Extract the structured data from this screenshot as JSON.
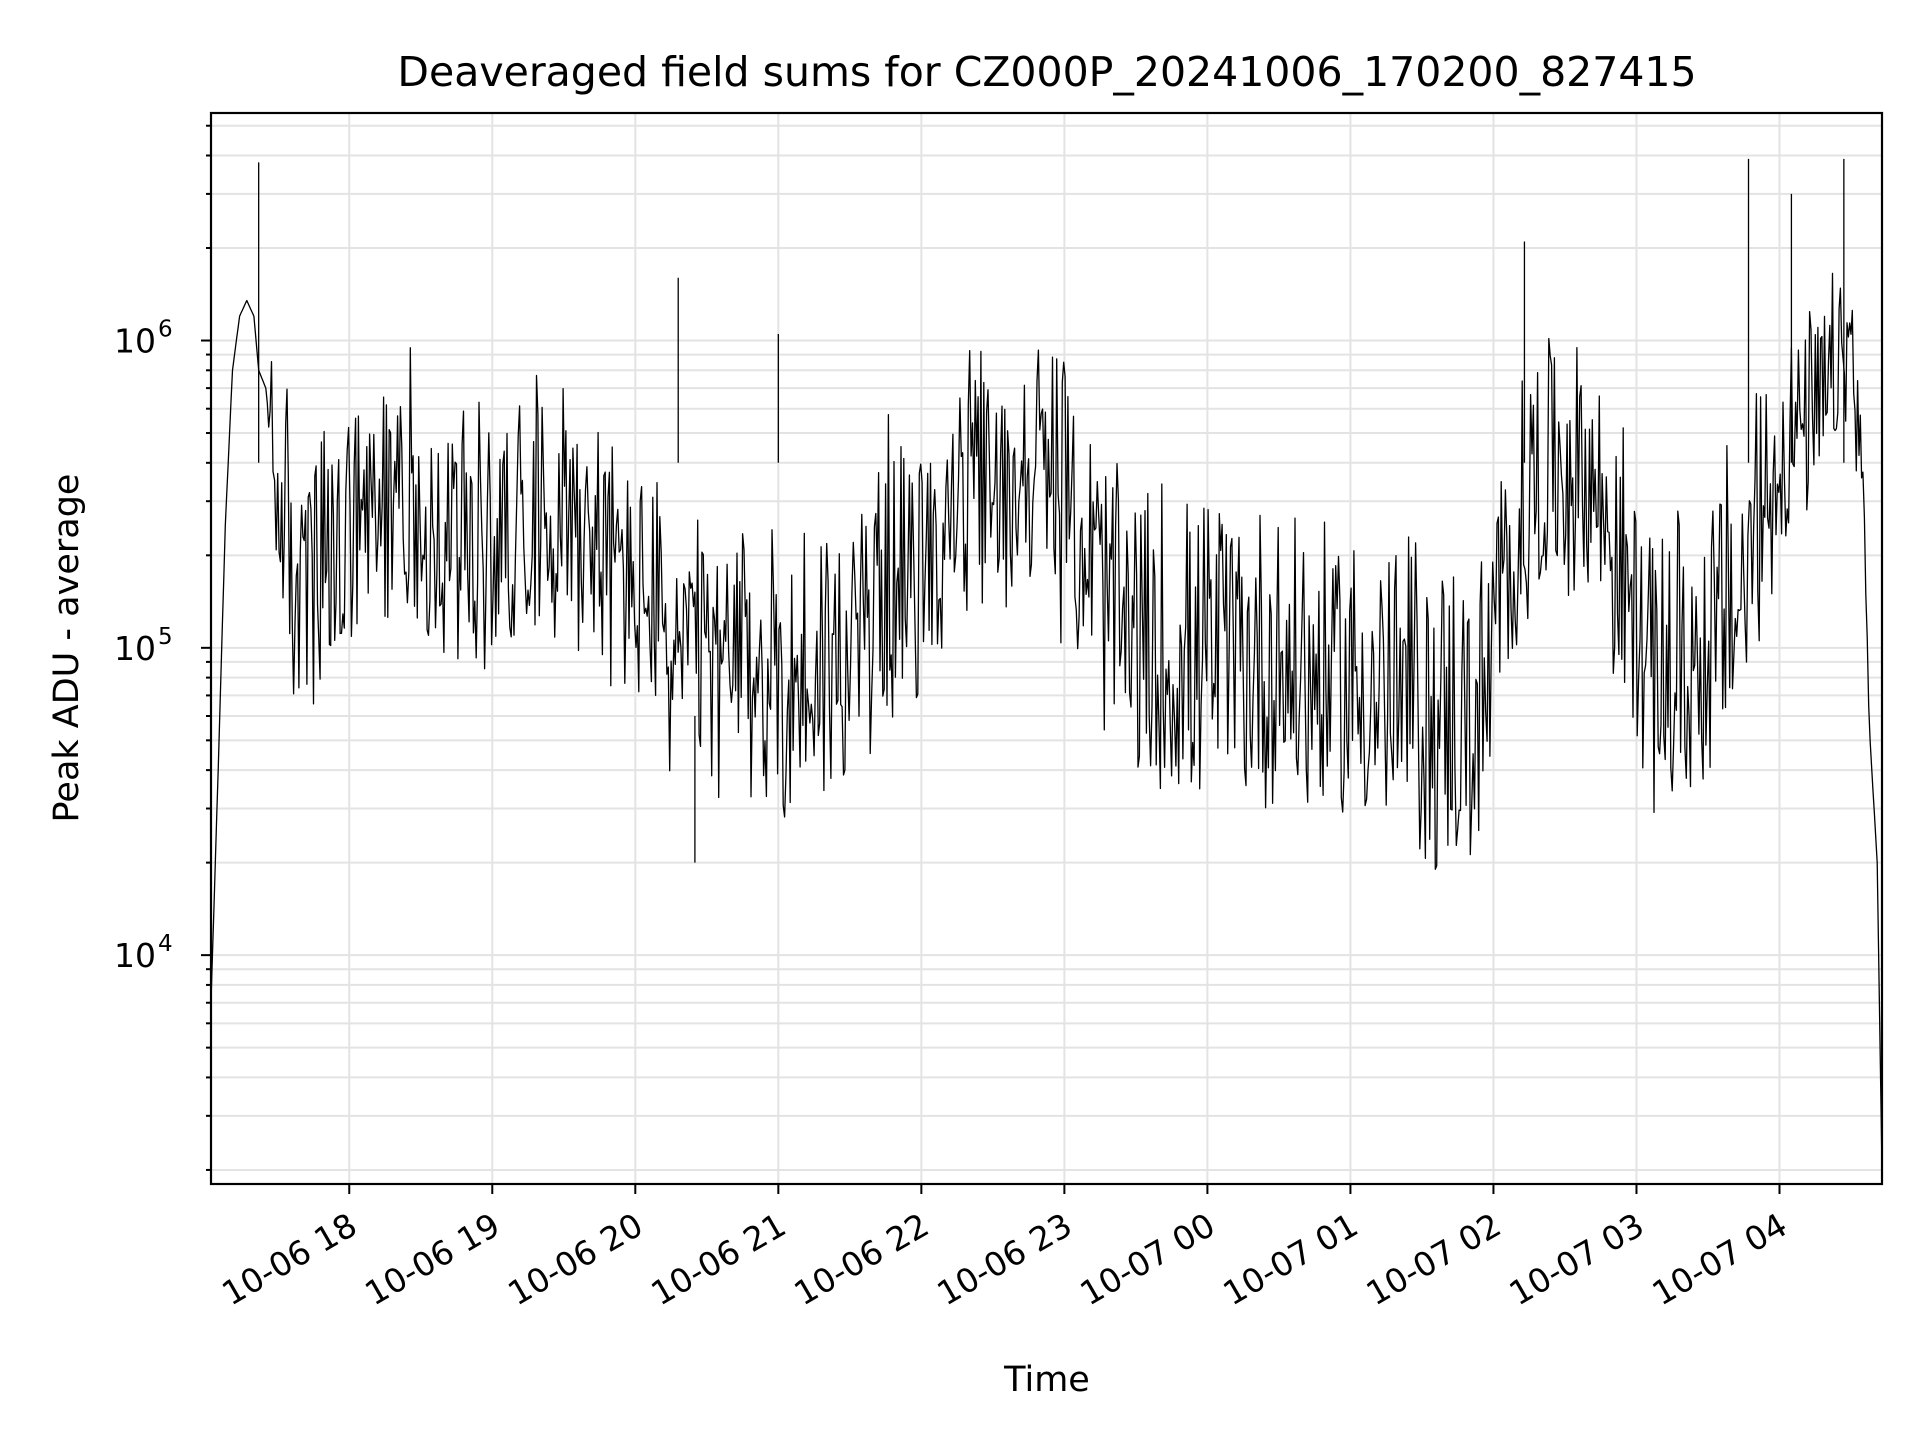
{
  "chart_data": {
    "type": "line",
    "title": "Deaveraged field sums for CZ000P_20241006_170200_827415",
    "xlabel": "Time",
    "ylabel": "Peak ADU - average",
    "yscale": "log",
    "ylim": [
      1800,
      5500000
    ],
    "xlim": [
      "2024-10-06T17:02:00",
      "2024-10-07T04:43:00"
    ],
    "grid": true,
    "legend": "none",
    "line_color": "#000000",
    "x_ticks": [
      {
        "t": "2024-10-06T18:00",
        "label": "10-06 18"
      },
      {
        "t": "2024-10-06T19:00",
        "label": "10-06 19"
      },
      {
        "t": "2024-10-06T20:00",
        "label": "10-06 20"
      },
      {
        "t": "2024-10-06T21:00",
        "label": "10-06 21"
      },
      {
        "t": "2024-10-06T22:00",
        "label": "10-06 22"
      },
      {
        "t": "2024-10-06T23:00",
        "label": "10-06 23"
      },
      {
        "t": "2024-10-07T00:00",
        "label": "10-07 00"
      },
      {
        "t": "2024-10-07T01:00",
        "label": "10-07 01"
      },
      {
        "t": "2024-10-07T02:00",
        "label": "10-07 02"
      },
      {
        "t": "2024-10-07T03:00",
        "label": "10-07 03"
      },
      {
        "t": "2024-10-07T04:00",
        "label": "10-07 04"
      }
    ],
    "y_ticks": [
      {
        "value": 10000,
        "base": "10",
        "exp": "4"
      },
      {
        "value": 100000,
        "base": "10",
        "exp": "5"
      },
      {
        "value": 1000000,
        "base": "10",
        "exp": "6"
      }
    ],
    "series": [
      {
        "x": [
          "2024-10-06T17:02",
          "2024-10-06T17:05",
          "2024-10-06T17:08",
          "2024-10-06T17:11",
          "2024-10-06T17:14",
          "2024-10-06T17:17",
          "2024-10-06T17:20",
          "2024-10-06T17:22",
          "2024-10-06T17:25",
          "2024-10-06T17:28",
          "2024-10-06T17:30",
          "2024-10-06T17:35",
          "2024-10-06T17:40",
          "2024-10-06T17:45",
          "2024-10-06T17:50",
          "2024-10-06T17:55",
          "2024-10-06T18:05",
          "2024-10-06T18:15",
          "2024-10-06T18:25",
          "2024-10-06T18:35",
          "2024-10-06T18:45",
          "2024-10-06T18:55",
          "2024-10-06T19:05",
          "2024-10-06T19:15",
          "2024-10-06T19:25",
          "2024-10-06T19:35",
          "2024-10-06T19:45",
          "2024-10-06T19:55",
          "2024-10-06T20:05",
          "2024-10-06T20:15",
          "2024-10-06T20:25",
          "2024-10-06T20:35",
          "2024-10-06T20:45",
          "2024-10-06T20:55",
          "2024-10-06T21:05",
          "2024-10-06T21:15",
          "2024-10-06T21:25",
          "2024-10-06T21:35",
          "2024-10-06T21:45",
          "2024-10-06T21:55",
          "2024-10-06T22:05",
          "2024-10-06T22:15",
          "2024-10-06T22:25",
          "2024-10-06T22:35",
          "2024-10-06T22:45",
          "2024-10-06T22:55",
          "2024-10-06T23:05",
          "2024-10-06T23:15",
          "2024-10-06T23:25",
          "2024-10-06T23:35",
          "2024-10-06T23:45",
          "2024-10-06T23:55",
          "2024-10-07T00:05",
          "2024-10-07T00:15",
          "2024-10-07T00:25",
          "2024-10-07T00:35",
          "2024-10-07T00:45",
          "2024-10-07T00:55",
          "2024-10-07T01:05",
          "2024-10-07T01:15",
          "2024-10-07T01:25",
          "2024-10-07T01:35",
          "2024-10-07T01:45",
          "2024-10-07T01:55",
          "2024-10-07T02:05",
          "2024-10-07T02:15",
          "2024-10-07T02:25",
          "2024-10-07T02:35",
          "2024-10-07T02:45",
          "2024-10-07T02:55",
          "2024-10-07T03:05",
          "2024-10-07T03:15",
          "2024-10-07T03:25",
          "2024-10-07T03:35",
          "2024-10-07T03:45",
          "2024-10-07T03:55",
          "2024-10-07T04:05",
          "2024-10-07T04:15",
          "2024-10-07T04:20",
          "2024-10-07T04:25",
          "2024-10-07T04:30",
          "2024-10-07T04:35",
          "2024-10-07T04:38",
          "2024-10-07T04:41",
          "2024-10-07T04:43"
        ],
        "y": [
          7000,
          40000,
          250000,
          800000,
          1200000,
          1350000,
          1200000,
          800000,
          700000,
          400000,
          300000,
          200000,
          120000,
          150000,
          130000,
          180000,
          200000,
          250000,
          300000,
          200000,
          200000,
          180000,
          250000,
          300000,
          300000,
          280000,
          200000,
          180000,
          150000,
          100000,
          100000,
          90000,
          80000,
          80000,
          70000,
          80000,
          80000,
          100000,
          150000,
          150000,
          200000,
          300000,
          350000,
          300000,
          400000,
          350000,
          250000,
          150000,
          100000,
          80000,
          80000,
          80000,
          90000,
          80000,
          80000,
          80000,
          70000,
          70000,
          70000,
          60000,
          60000,
          50000,
          50000,
          50000,
          150000,
          300000,
          400000,
          400000,
          300000,
          150000,
          80000,
          70000,
          80000,
          100000,
          150000,
          300000,
          500000,
          500000,
          600000,
          800000,
          1000000,
          300000,
          50000,
          20000,
          2000
        ],
        "spread_hi": [
          1,
          1,
          1,
          1,
          1,
          1,
          1,
          1,
          1,
          3,
          3,
          4,
          4,
          5,
          5,
          5,
          4,
          4,
          4,
          4,
          4,
          4,
          3,
          3,
          3,
          3,
          3,
          3,
          3,
          3,
          3,
          3,
          4,
          4,
          4,
          4,
          4,
          4,
          4,
          4,
          3,
          3,
          3,
          3,
          3,
          3,
          4,
          4,
          5,
          5,
          5,
          5,
          5,
          5,
          5,
          5,
          5,
          5,
          5,
          5,
          5,
          5,
          5,
          5,
          4,
          4,
          3,
          3,
          3,
          4,
          5,
          5,
          5,
          5,
          4,
          4,
          3,
          3,
          3,
          2,
          2,
          2,
          1,
          1,
          1
        ],
        "spread_lo": [
          1,
          1,
          1,
          1,
          1,
          1,
          1,
          1,
          1,
          2,
          2,
          3,
          3,
          3,
          3,
          3,
          3,
          3,
          3,
          3,
          3,
          3,
          3,
          3,
          3,
          3,
          3,
          3,
          3,
          3,
          3,
          3,
          3,
          3,
          3,
          3,
          3,
          3,
          3,
          3,
          3,
          3,
          3,
          3,
          3,
          3,
          3,
          3,
          3,
          3,
          3,
          3,
          3,
          3,
          3,
          3,
          3,
          3,
          3,
          3,
          3,
          3,
          3,
          3,
          3,
          3,
          3,
          3,
          3,
          3,
          3,
          3,
          3,
          3,
          3,
          3,
          2,
          2,
          2,
          2,
          2,
          2,
          1,
          1,
          1
        ],
        "spikes": [
          {
            "t": "2024-10-06T17:22",
            "y": 3800000
          },
          {
            "t": "2024-10-06T20:18",
            "y": 1600000
          },
          {
            "t": "2024-10-06T20:25",
            "y": 20000
          },
          {
            "t": "2024-10-06T21:00",
            "y": 1050000
          },
          {
            "t": "2024-10-07T02:13",
            "y": 2100000
          },
          {
            "t": "2024-10-07T03:47",
            "y": 3900000
          },
          {
            "t": "2024-10-07T04:05",
            "y": 3000000
          },
          {
            "t": "2024-10-07T04:27",
            "y": 3900000
          }
        ]
      }
    ]
  }
}
